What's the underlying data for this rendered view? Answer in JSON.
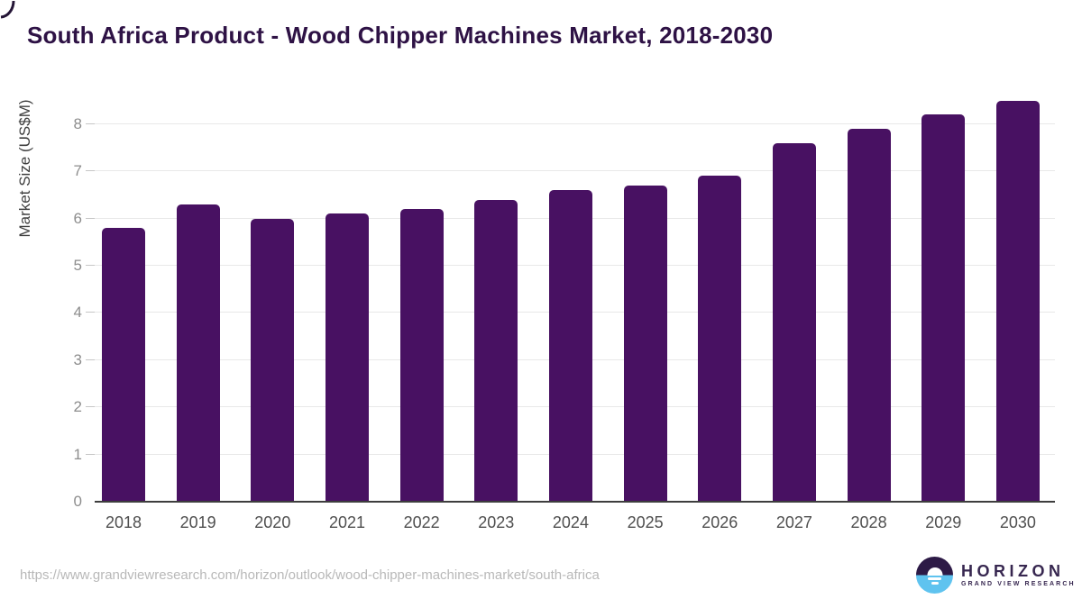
{
  "header": {
    "title": "South Africa Product - Wood Chipper Machines Market, 2018-2030"
  },
  "chart_data": {
    "type": "bar",
    "title": "South Africa Product - Wood Chipper Machines Market, 2018-2030",
    "categories": [
      "2018",
      "2019",
      "2020",
      "2021",
      "2022",
      "2023",
      "2024",
      "2025",
      "2026",
      "2027",
      "2028",
      "2029",
      "2030"
    ],
    "values": [
      5.8,
      6.3,
      6.0,
      6.1,
      6.2,
      6.4,
      6.6,
      6.7,
      6.9,
      7.6,
      7.9,
      8.2,
      8.5
    ],
    "xlabel": "",
    "ylabel": "Market Size (US$M)",
    "ylim": [
      0,
      8.78
    ],
    "yticks": [
      0,
      1,
      2,
      3,
      4,
      5,
      6,
      7,
      8
    ],
    "grid": true,
    "legend": "none",
    "bar_color": "#481162"
  },
  "footer": {
    "source_url": "https://www.grandviewresearch.com/horizon/outlook/wood-chipper-machines-market/south-africa",
    "logo": {
      "name": "HORIZON",
      "subtitle": "GRAND VIEW RESEARCH",
      "mark_top_color": "#2d1a46",
      "mark_bottom_color": "#5fc3ef"
    }
  },
  "colors": {
    "title": "#2e1245",
    "bar": "#481162",
    "axis_line": "#3e3e3e",
    "gridline": "#e8e8e8",
    "y_tick_label": "#8d8d8d",
    "x_tick_label": "#4f4f4f",
    "url_text": "#b8b8b8"
  }
}
